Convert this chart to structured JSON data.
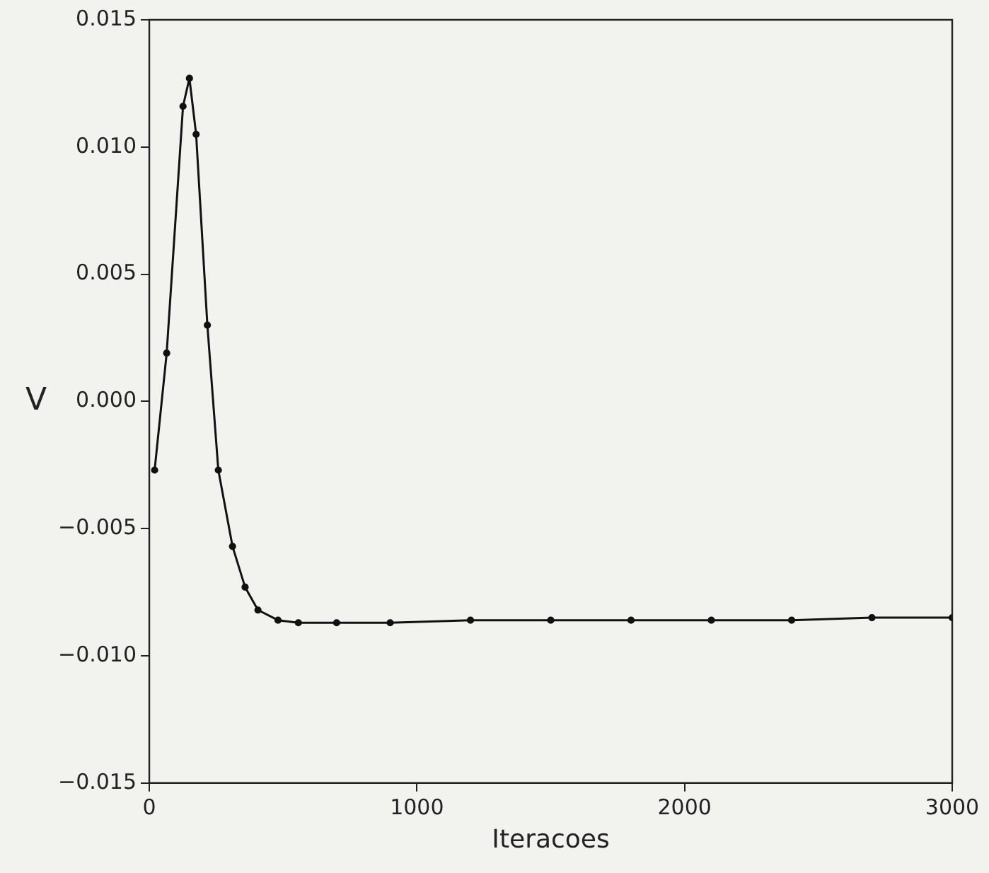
{
  "chart_data": {
    "type": "line",
    "xlabel": "Iteracoes",
    "ylabel": "V",
    "x": [
      20,
      65,
      126,
      150,
      175,
      217,
      258,
      311,
      358,
      406,
      481,
      557,
      700,
      900,
      1200,
      1500,
      1800,
      2100,
      2400,
      2700,
      3000
    ],
    "series": [
      {
        "color": "#111111",
        "values": [
          -0.0027,
          0.0019,
          0.0116,
          0.0127,
          0.0105,
          0.003,
          -0.0027,
          -0.0057,
          -0.0073,
          -0.0082,
          -0.0086,
          -0.0087,
          -0.0087,
          -0.0087,
          -0.0086,
          -0.0086,
          -0.0086,
          -0.0086,
          -0.0086,
          -0.0085,
          -0.0085
        ]
      }
    ],
    "xlim": [
      0,
      3000
    ],
    "xticks": [
      0,
      1000,
      2000,
      3000
    ],
    "ylim": [
      -0.015,
      0.015
    ],
    "yticks": [
      {
        "value": -0.015,
        "label": "−0.015"
      },
      {
        "value": -0.01,
        "label": "−0.010"
      },
      {
        "value": -0.005,
        "label": "−0.005"
      },
      {
        "value": 0,
        "label": "0.000"
      },
      {
        "value": 0.005,
        "label": "0.005"
      },
      {
        "value": 0.01,
        "label": "0.010"
      },
      {
        "value": 0.015,
        "label": "0.015"
      }
    ],
    "grid": false,
    "legend": false,
    "marker": "circle",
    "line_style": "solid"
  }
}
